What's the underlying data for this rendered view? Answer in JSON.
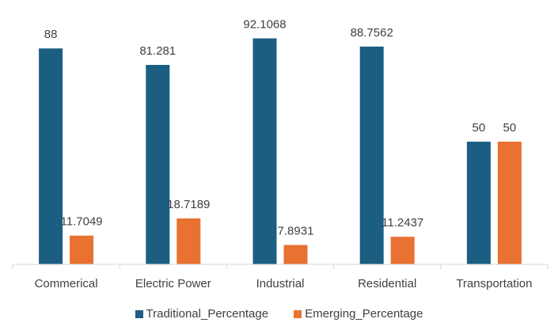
{
  "chart_data": {
    "type": "bar",
    "title": "",
    "xlabel": "",
    "ylabel": "",
    "ylim": [
      0,
      100
    ],
    "grid": false,
    "legend_position": "bottom",
    "categories": [
      "Commerical",
      "Electric Power",
      "Industrial",
      "Residential",
      "Transportation"
    ],
    "series": [
      {
        "name": "Traditional_Percentage",
        "color": "#1b5e82",
        "values": [
          88,
          81.281,
          92.1068,
          88.7562,
          50
        ],
        "labels": [
          "88",
          "81.281",
          "92.1068",
          "88.7562",
          "50"
        ]
      },
      {
        "name": "Emerging_Percentage",
        "color": "#e97132",
        "values": [
          11.7049,
          18.7189,
          7.8931,
          11.2437,
          50
        ],
        "labels": [
          "11.7049",
          "18.7189",
          "7.8931",
          "11.2437",
          "50"
        ]
      }
    ]
  }
}
